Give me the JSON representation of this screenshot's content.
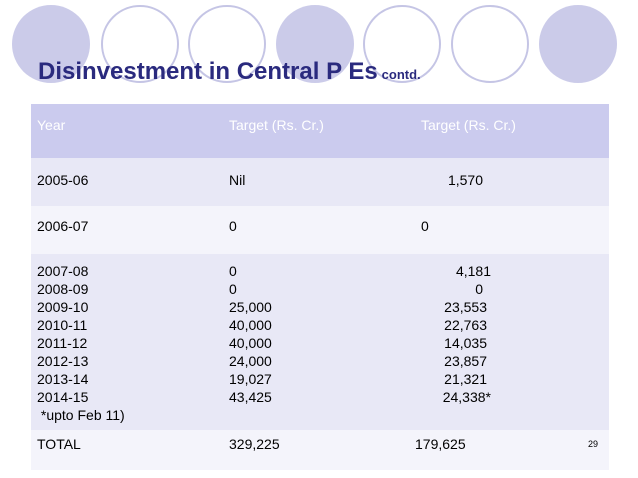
{
  "title": {
    "main": "Disinvestment in Central P Es",
    "sub": "contd."
  },
  "header": {
    "col1": "Year",
    "col2": "Target (Rs. Cr.)",
    "col3": "Target (Rs. Cr.)"
  },
  "rows": [
    {
      "year": "2005-06",
      "col2": "Nil",
      "col3": "1,570"
    },
    {
      "year": "2006-07",
      "col2": "0",
      "col3": "0"
    }
  ],
  "block": {
    "years": [
      "2007-08",
      "2008-09",
      "2009-10",
      "2010-11",
      "2011-12",
      "2012-13",
      "2013-14",
      "2014-15"
    ],
    "note": " *upto Feb 11)",
    "col2": [
      "0",
      "0",
      "25,000",
      "40,000",
      "40,000",
      "24,000",
      "19,027",
      "43,425"
    ],
    "col3": [
      "4,181",
      "0",
      "23,553",
      "22,763",
      "14,035",
      "23,857",
      "21,321",
      "24,338*"
    ]
  },
  "total": {
    "label": "TOTAL",
    "col2": "329,225",
    "col3": "179,625"
  },
  "page_number": "29",
  "colors": {
    "title": "#2a2a7e",
    "header_bg": "#cbcbee",
    "row_bg_a": "#e8e8f6",
    "row_bg_b": "#f4f4fb",
    "circle": "#cbcbe9"
  }
}
